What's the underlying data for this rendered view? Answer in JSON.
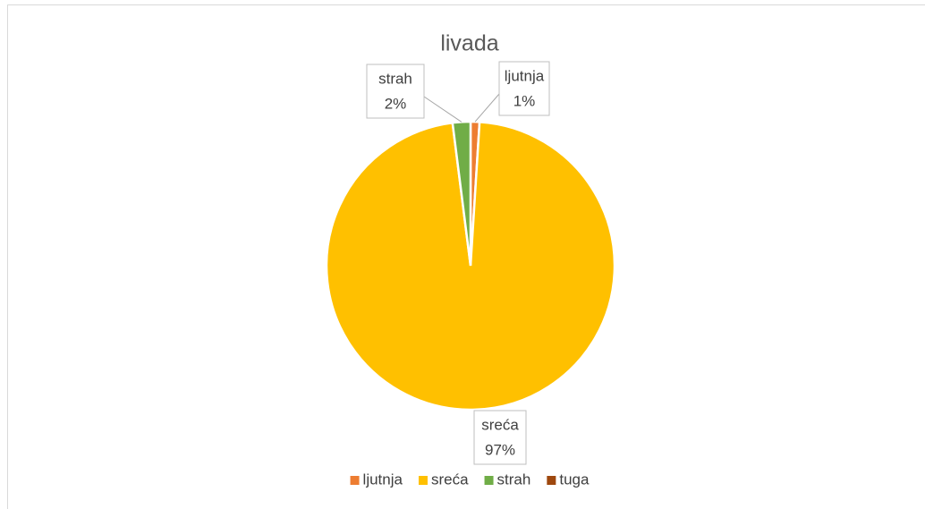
{
  "chart_data": {
    "type": "pie",
    "title": "livada",
    "categories": [
      "ljutnja",
      "sreća",
      "strah",
      "tuga"
    ],
    "values": [
      1,
      97,
      2,
      0
    ],
    "value_labels": [
      "1%",
      "97%",
      "2%",
      null
    ],
    "colors": [
      "#ed7d31",
      "#ffc000",
      "#70ad47",
      "#9e480e"
    ],
    "legend": "bottom"
  }
}
